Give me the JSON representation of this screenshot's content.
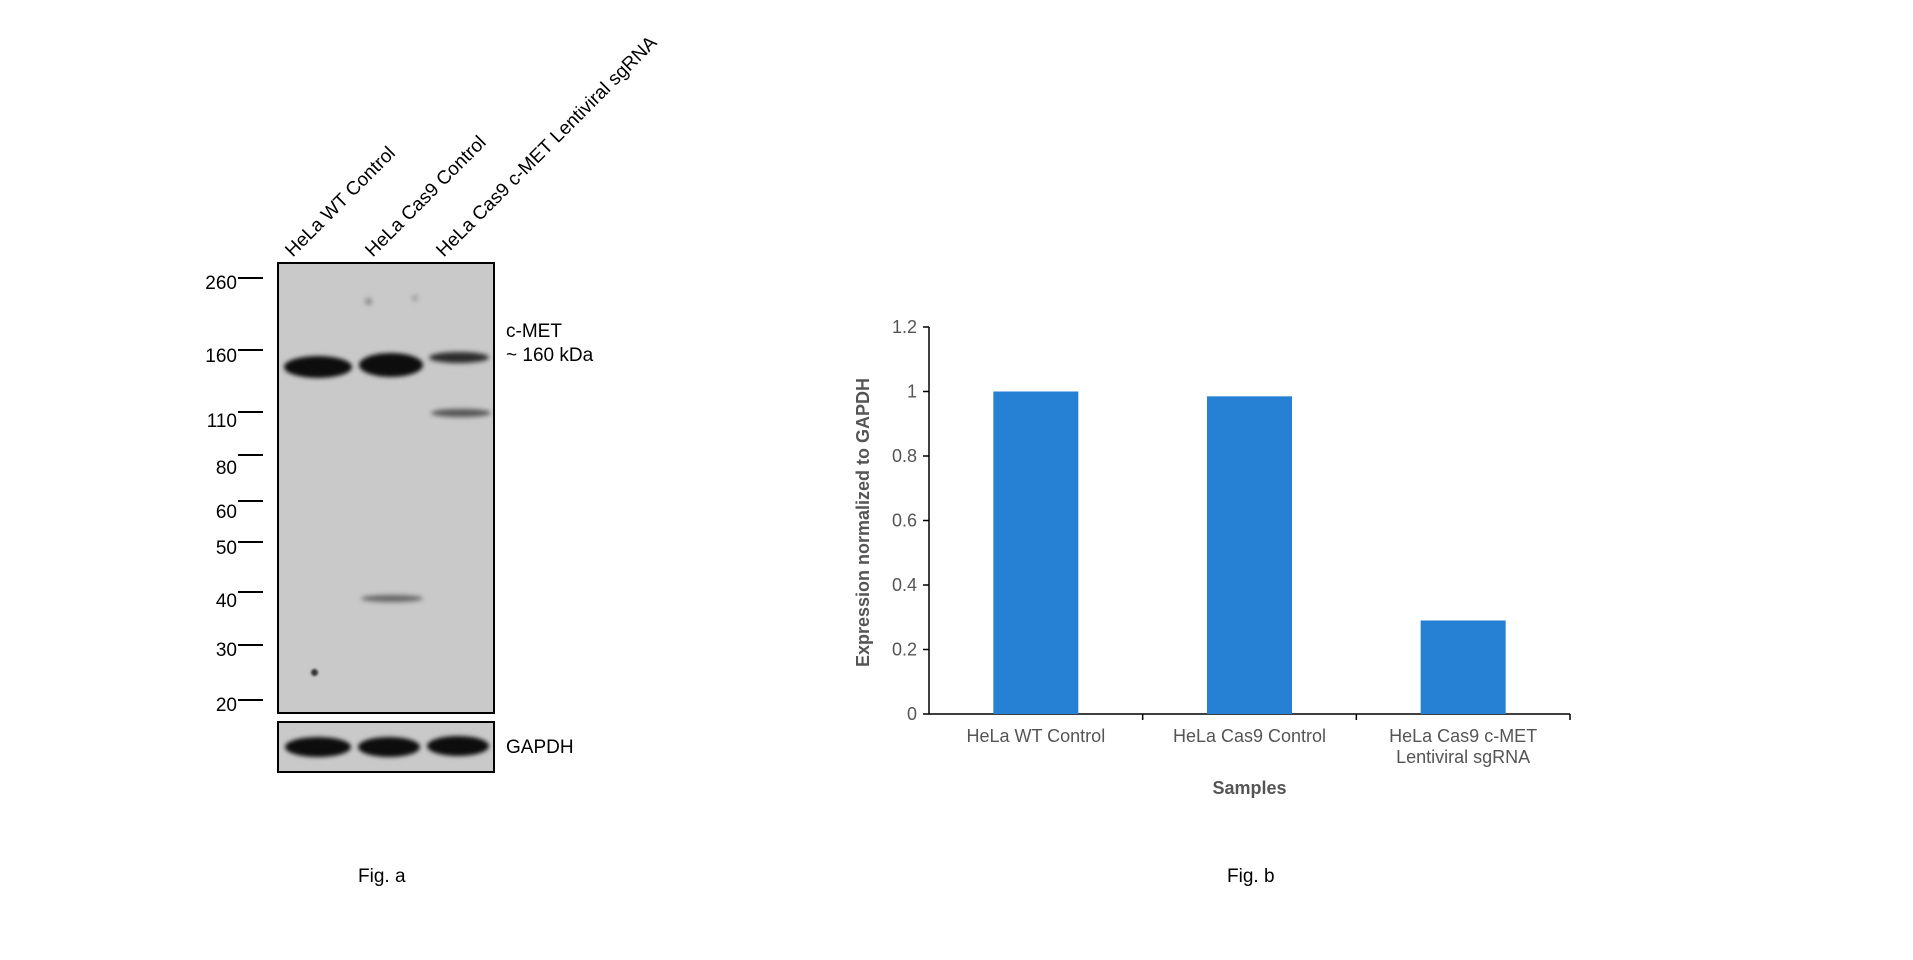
{
  "fig_a": {
    "lanes": [
      "HeLa WT Control",
      "HeLa Cas9 Control",
      "HeLa Cas9 c-MET Lentiviral sgRNA"
    ],
    "markers": [
      "260",
      "160",
      "110",
      "80",
      "60",
      "50",
      "40",
      "30",
      "20"
    ],
    "target_label": "c-MET",
    "target_size": "~ 160 kDa",
    "loading_control": "GAPDH",
    "caption": "Fig. a"
  },
  "fig_b": {
    "caption": "Fig. b"
  },
  "chart_data": {
    "type": "bar",
    "categories": [
      [
        "HeLa WT Control"
      ],
      [
        "HeLa Cas9 Control"
      ],
      [
        "HeLa Cas9 c-MET",
        "Lentiviral sgRNA"
      ]
    ],
    "values": [
      1.0,
      0.985,
      0.29
    ],
    "xlabel": "Samples",
    "ylabel": "Expression normalized to GAPDH",
    "ylim": [
      0,
      1.2
    ],
    "yticks": [
      "0",
      "0.2",
      "0.4",
      "0.6",
      "0.8",
      "1",
      "1.2"
    ],
    "bar_color": "#2680d4",
    "grid": false
  }
}
